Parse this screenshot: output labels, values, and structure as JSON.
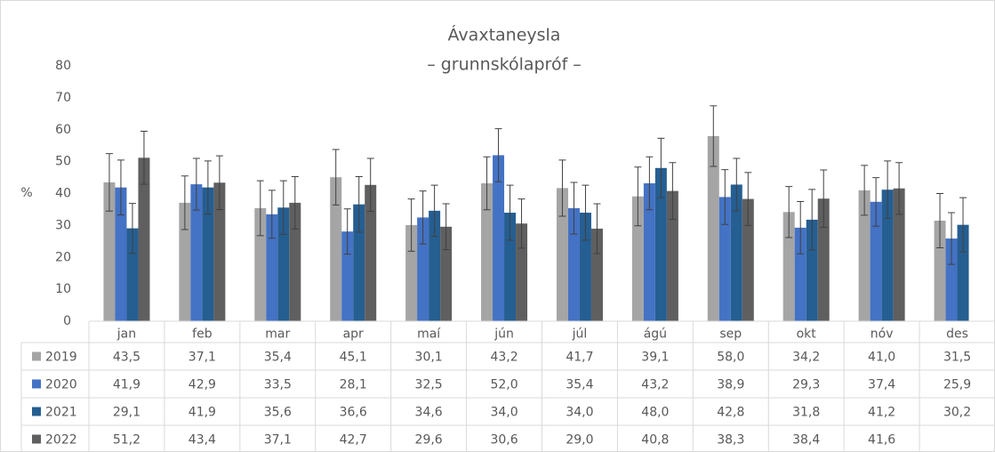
{
  "chart_data": {
    "type": "bar",
    "title": "Ávaxtaneysla",
    "subtitle": "– grunnskólapróf –",
    "y_label": "%",
    "categories": [
      "jan",
      "feb",
      "mar",
      "apr",
      "maí",
      "jún",
      "júl",
      "ágú",
      "sep",
      "okt",
      "nóv",
      "des"
    ],
    "ylim": [
      0,
      80
    ],
    "yticks": [
      0,
      10,
      20,
      30,
      40,
      50,
      60,
      70,
      80
    ],
    "grid": false,
    "data_table": true,
    "series": [
      {
        "name": "2019",
        "color": "#a5a5a5",
        "values": [
          43.5,
          37.1,
          35.4,
          45.1,
          30.1,
          43.2,
          41.7,
          39.1,
          58.0,
          34.2,
          41.0,
          31.5
        ],
        "value_labels": [
          "43,5",
          "37,1",
          "35,4",
          "45,1",
          "30,1",
          "43,2",
          "41,7",
          "39,1",
          "58,0",
          "34,2",
          "41,0",
          "31,5"
        ],
        "errors": [
          9,
          8.4,
          8.6,
          8.7,
          8.2,
          8.3,
          8.8,
          9.2,
          9.5,
          8,
          7.8,
          8.5
        ]
      },
      {
        "name": "2020",
        "color": "#4472c4",
        "values": [
          41.9,
          42.9,
          33.5,
          28.1,
          32.5,
          52.0,
          35.4,
          43.2,
          38.9,
          29.3,
          37.4,
          25.9
        ],
        "value_labels": [
          "41,9",
          "42,9",
          "33,5",
          "28,1",
          "32,5",
          "52,0",
          "35,4",
          "43,2",
          "38,9",
          "29,3",
          "37,4",
          "25,9"
        ],
        "errors": [
          8.6,
          8.1,
          7.5,
          7.1,
          8.3,
          8.3,
          8.1,
          8.3,
          8.6,
          8.2,
          7.6,
          8.1
        ]
      },
      {
        "name": "2021",
        "color": "#255e91",
        "values": [
          29.1,
          41.9,
          35.6,
          36.6,
          34.6,
          34.0,
          34.0,
          48.0,
          42.8,
          31.8,
          41.2,
          30.2
        ],
        "value_labels": [
          "29,1",
          "41,9",
          "35,6",
          "36,6",
          "34,6",
          "34,0",
          "34,0",
          "48,0",
          "42,8",
          "31,8",
          "41,2",
          "30,2"
        ],
        "errors": [
          7.8,
          8.3,
          8.4,
          8.7,
          8,
          8.6,
          8.6,
          9.3,
          8.2,
          9.5,
          9,
          8.5
        ]
      },
      {
        "name": "2022",
        "color": "#5f5f5f",
        "values": [
          51.2,
          43.4,
          37.1,
          42.7,
          29.6,
          30.6,
          29.0,
          40.8,
          38.3,
          38.4,
          41.6,
          null
        ],
        "value_labels": [
          "51,2",
          "43,4",
          "37,1",
          "42,7",
          "29,6",
          "30,6",
          "29,0",
          "40,8",
          "38,3",
          "38,4",
          "41,6",
          null
        ],
        "errors": [
          8.3,
          8.4,
          8.2,
          8.3,
          7.2,
          7.7,
          7.8,
          8.9,
          8.3,
          9,
          8.1,
          null
        ]
      }
    ]
  }
}
